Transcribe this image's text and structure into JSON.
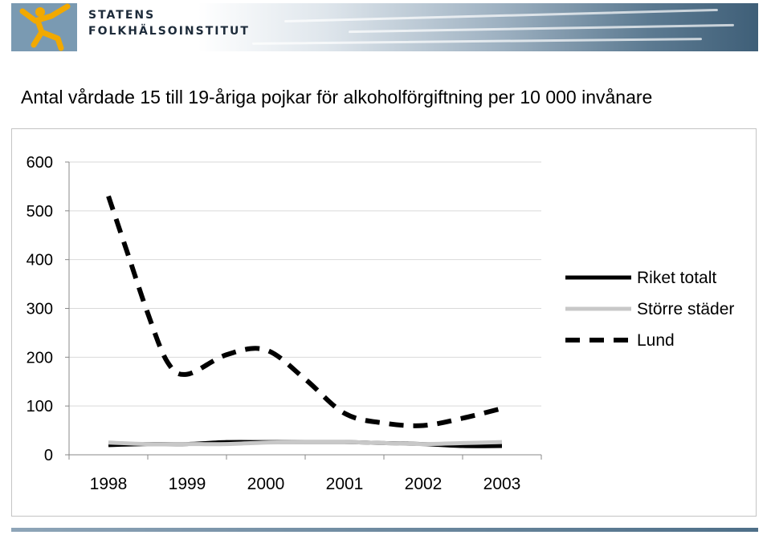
{
  "header": {
    "org_line1": "STATENS",
    "org_line2": "FOLKHÄLSOINSTITUT",
    "logo_icon": "person-jumping-icon",
    "logo_color": "#f2a900"
  },
  "chart_data": {
    "type": "line",
    "title": "Antal vårdade 15 till 19-åriga pojkar för alkoholförgiftning per 10 000 invånare",
    "xlabel": "",
    "ylabel": "",
    "categories": [
      "1998",
      "1999",
      "2000",
      "2001",
      "2002",
      "2003"
    ],
    "ylim": [
      0,
      600
    ],
    "yticks": [
      0,
      100,
      200,
      300,
      400,
      500,
      600
    ],
    "grid": true,
    "legend_position": "right",
    "series": [
      {
        "name": "Riket totalt",
        "style": "solid",
        "color": "#000000",
        "values": [
          [
            0,
            20
          ],
          [
            0.5,
            22
          ],
          [
            1,
            22
          ],
          [
            1.5,
            26
          ],
          [
            2,
            26
          ],
          [
            2.5,
            26
          ],
          [
            3,
            26
          ],
          [
            3.5,
            24
          ],
          [
            4,
            22
          ],
          [
            4.5,
            18
          ],
          [
            5,
            18
          ]
        ]
      },
      {
        "name": "Större städer",
        "style": "solid",
        "color": "#c8c8c8",
        "values": [
          [
            0,
            25
          ],
          [
            0.5,
            22
          ],
          [
            1,
            22
          ],
          [
            1.5,
            22
          ],
          [
            2,
            25
          ],
          [
            2.5,
            26
          ],
          [
            3,
            26
          ],
          [
            3.5,
            24
          ],
          [
            4,
            22
          ],
          [
            4.5,
            24
          ],
          [
            5,
            26
          ]
        ]
      },
      {
        "name": "Lund",
        "style": "dashed",
        "color": "#000000",
        "values": [
          [
            0,
            530
          ],
          [
            0.25,
            410
          ],
          [
            0.5,
            290
          ],
          [
            0.75,
            190
          ],
          [
            1,
            165
          ],
          [
            1.5,
            205
          ],
          [
            2,
            215
          ],
          [
            2.5,
            155
          ],
          [
            3,
            85
          ],
          [
            3.5,
            65
          ],
          [
            4,
            60
          ],
          [
            4.5,
            75
          ],
          [
            5,
            95
          ]
        ]
      }
    ]
  }
}
